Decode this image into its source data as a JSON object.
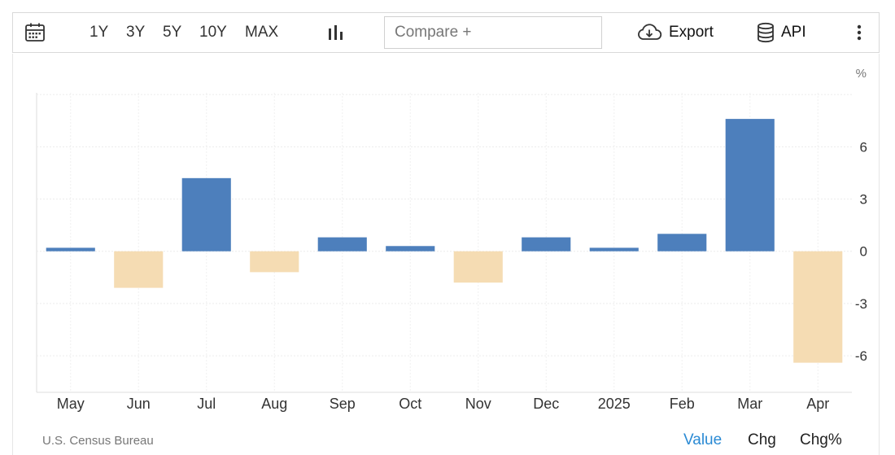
{
  "toolbar": {
    "ranges": [
      "1Y",
      "3Y",
      "5Y",
      "10Y",
      "MAX"
    ],
    "compare_placeholder": "Compare +",
    "export_label": "Export",
    "api_label": "API"
  },
  "footer": {
    "source": "U.S. Census Bureau",
    "modes": [
      "Value",
      "Chg",
      "Chg%"
    ],
    "active_mode": "Value"
  },
  "colors": {
    "positive": "#4d7fbc",
    "negative": "#f5dcb3",
    "active_mode": "#2a8ad4"
  },
  "chart_data": {
    "type": "bar",
    "unit": "%",
    "categories": [
      "May",
      "Jun",
      "Jul",
      "Aug",
      "Sep",
      "Oct",
      "Nov",
      "Dec",
      "2025",
      "Feb",
      "Mar",
      "Apr"
    ],
    "values": [
      0.2,
      -2.1,
      4.2,
      -1.2,
      0.8,
      0.3,
      -1.8,
      0.8,
      0.2,
      1.0,
      7.6,
      -6.4
    ],
    "yticks": [
      6,
      3,
      0,
      -3,
      -6
    ],
    "ylim": [
      -8.1,
      9.1
    ],
    "grid": true,
    "yaxis_position": "right"
  }
}
